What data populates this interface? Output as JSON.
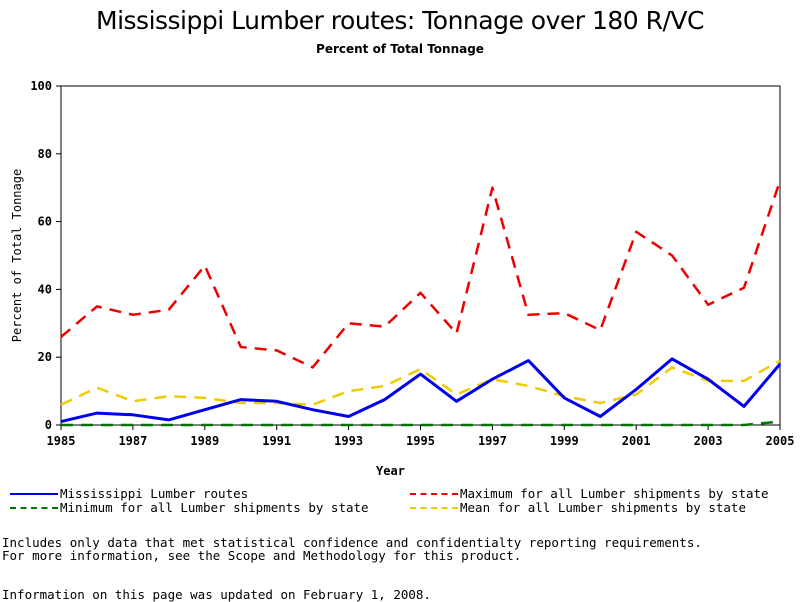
{
  "title": "Mississippi Lumber routes: Tonnage over 180 R/VC",
  "subtitle": "Percent of Total Tonnage",
  "chart_data": {
    "type": "line",
    "title": "Mississippi Lumber routes: Tonnage over 180 R/VC",
    "subtitle": "Percent of Total Tonnage",
    "xlabel": "Year",
    "ylabel": "Percent of Total Tonnage",
    "xlim": [
      1985,
      2005
    ],
    "ylim": [
      0,
      100
    ],
    "x_ticks": [
      "1985",
      "1987",
      "1989",
      "1991",
      "1993",
      "1995",
      "1997",
      "1999",
      "2001",
      "2003",
      "2005"
    ],
    "y_ticks": [
      "0",
      "20",
      "40",
      "60",
      "80",
      "100"
    ],
    "x": [
      1985,
      1986,
      1987,
      1988,
      1989,
      1990,
      1991,
      1992,
      1993,
      1994,
      1995,
      1996,
      1997,
      1998,
      1999,
      2000,
      2001,
      2002,
      2003,
      2004,
      2005
    ],
    "series": [
      {
        "name": "Mississippi Lumber routes",
        "color": "#0000ee",
        "dash": "solid",
        "values": [
          1,
          3.5,
          3,
          1.5,
          4.5,
          7.5,
          7,
          4.5,
          2.5,
          7.5,
          15,
          7,
          13.5,
          19,
          8,
          2.5,
          10.5,
          19.5,
          13.5,
          5.5,
          18
        ]
      },
      {
        "name": "Maximum for all Lumber shipments by state",
        "color": "#ee0000",
        "dash": "dashed",
        "values": [
          26,
          35,
          32.5,
          34,
          47,
          23,
          22,
          17,
          30,
          29,
          39,
          27,
          70,
          32.5,
          33,
          28,
          57,
          50,
          35.5,
          40.5,
          72
        ]
      },
      {
        "name": "Minimum for all Lumber shipments by state",
        "color": "#007700",
        "dash": "dashed",
        "values": [
          0,
          0,
          0,
          0,
          0,
          0,
          0,
          0,
          0,
          0,
          0,
          0,
          0,
          0,
          0,
          0,
          0,
          0,
          0,
          0,
          1
        ]
      },
      {
        "name": "Mean for all Lumber shipments by state",
        "color": "#eecc00",
        "dash": "dashed",
        "values": [
          6,
          11,
          7,
          8.5,
          8,
          6.5,
          6.5,
          6,
          10,
          11.5,
          16.5,
          9,
          13.5,
          11.5,
          8.5,
          6.5,
          9,
          17,
          13,
          13,
          19
        ]
      }
    ],
    "grid": false,
    "legend_position": "bottom"
  },
  "notes": {
    "line1": "Includes only data that met statistical confidence and confidentialty reporting requirements.",
    "line2": "For more information, see the Scope and Methodology for this product.",
    "updated": "Information on this page was updated on February 1, 2008."
  }
}
